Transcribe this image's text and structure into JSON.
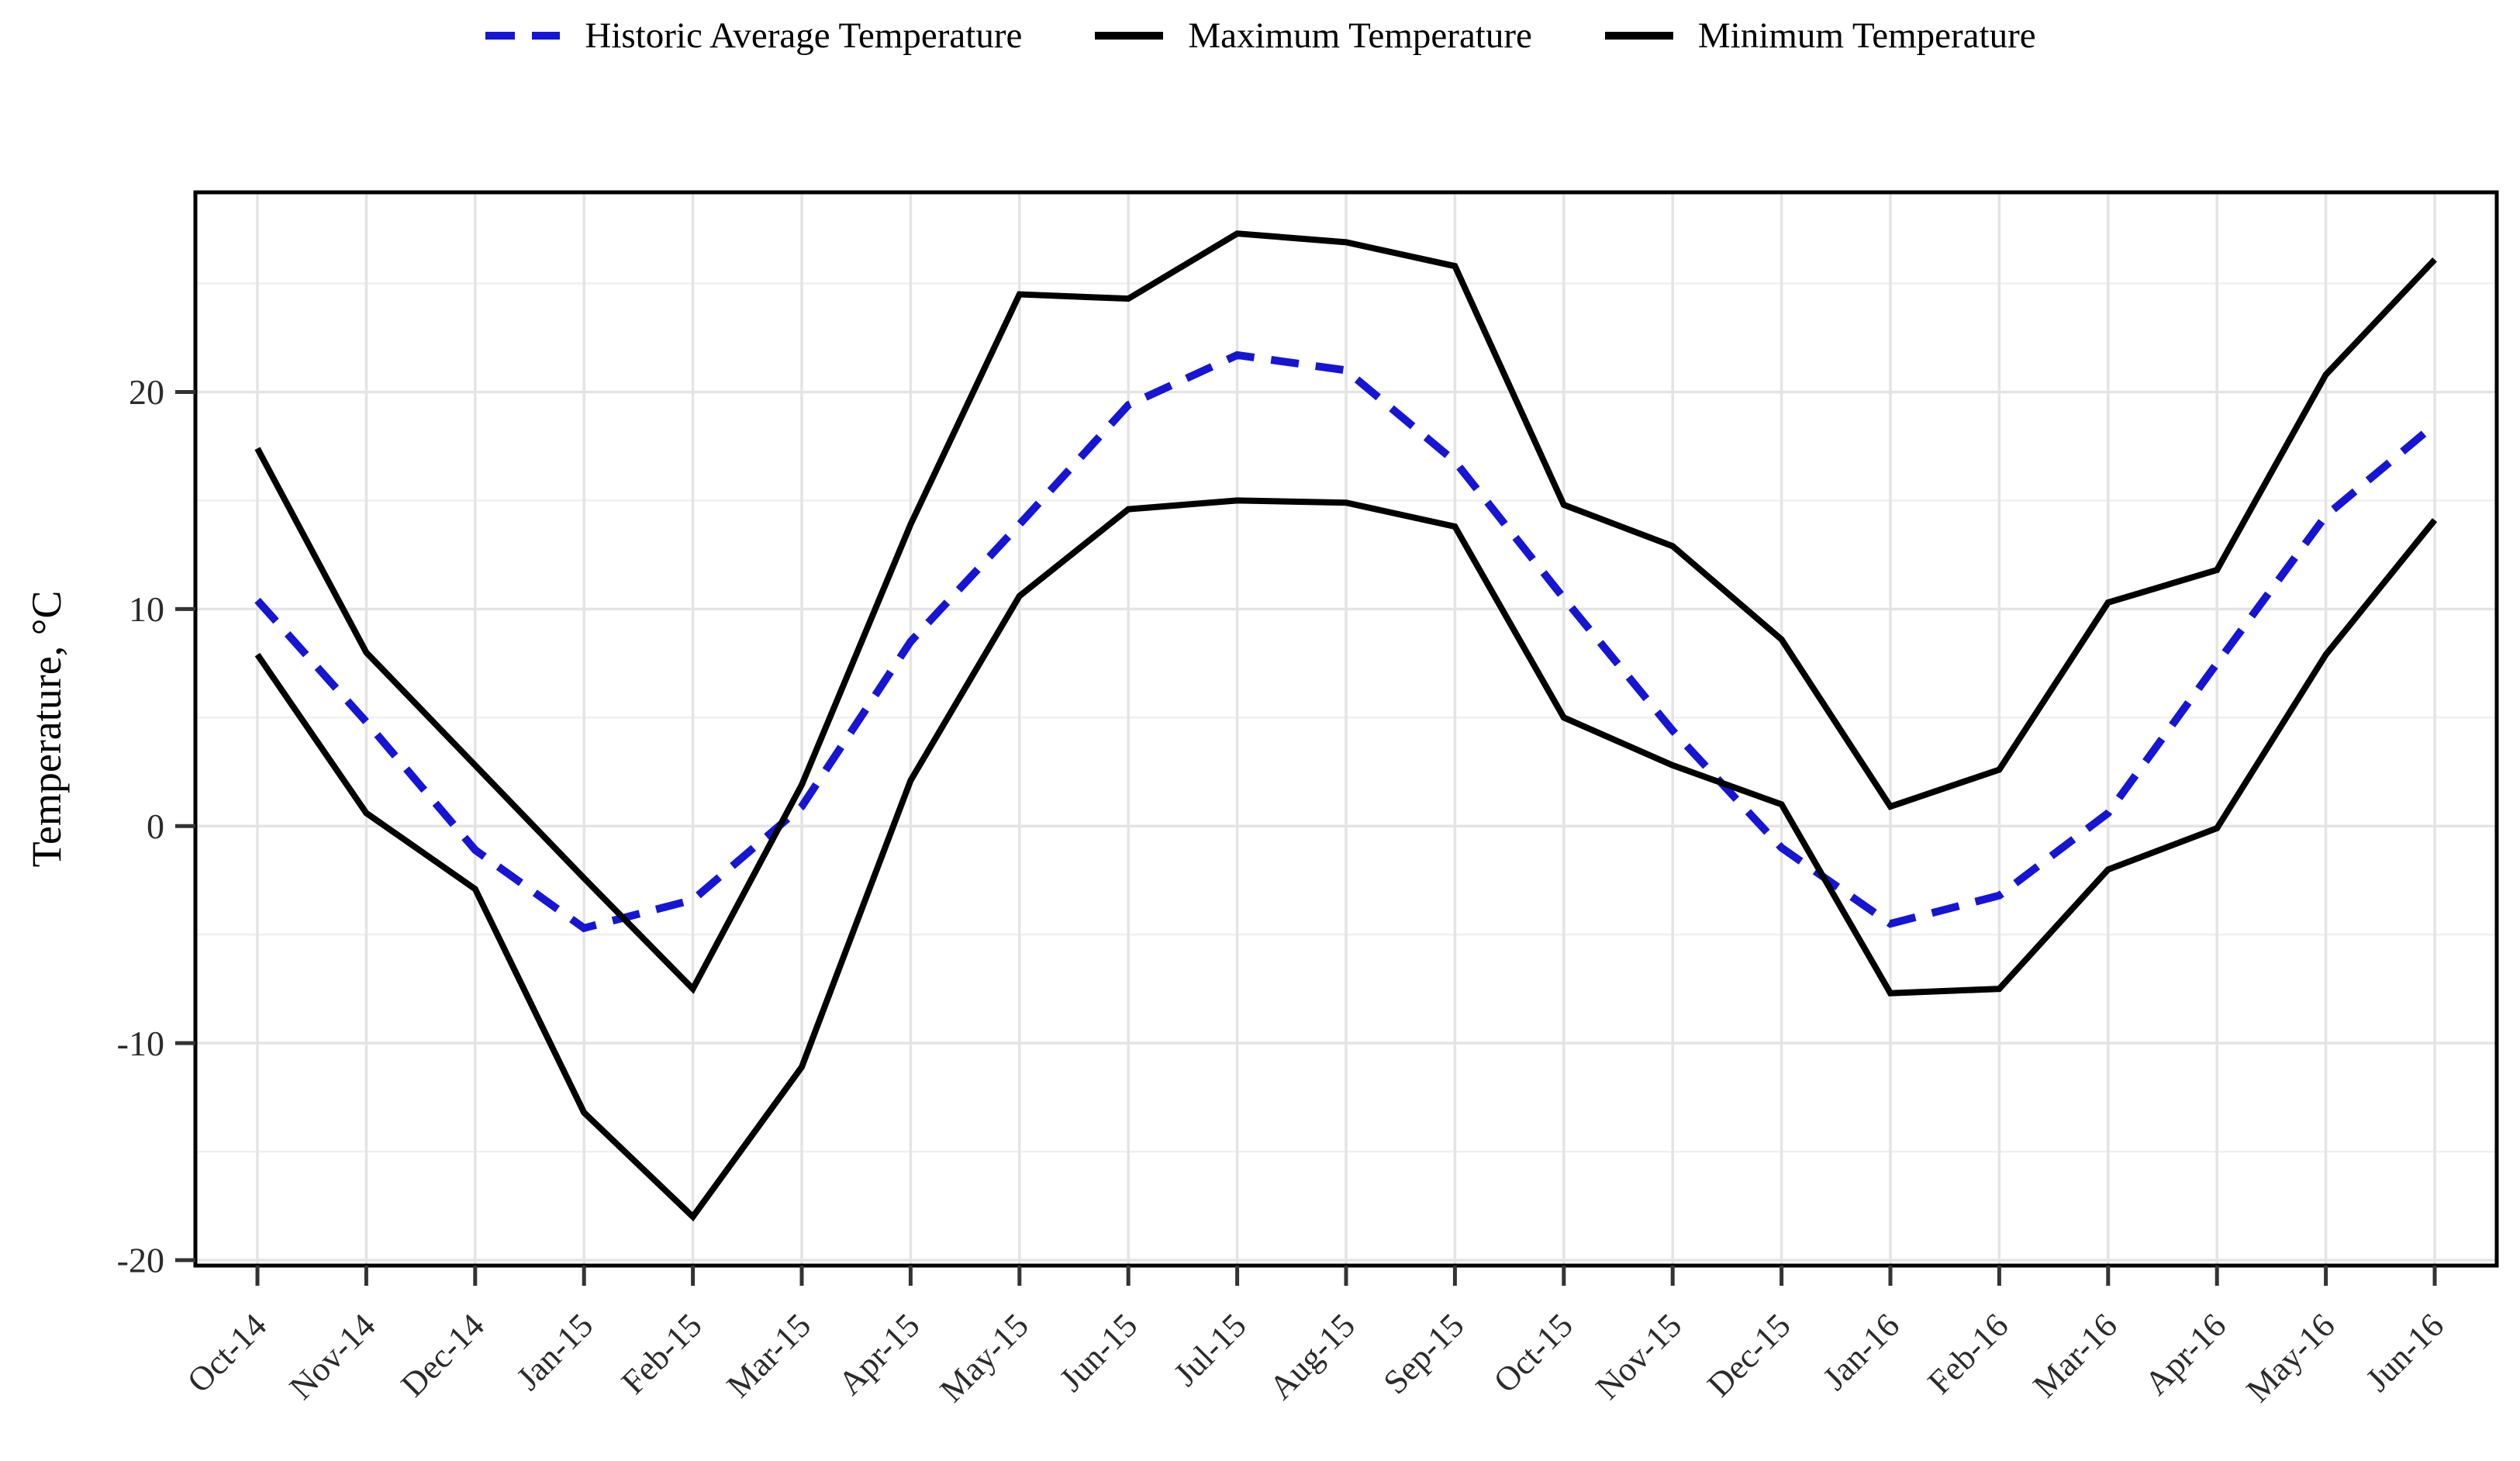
{
  "legend": {
    "items": [
      {
        "label": "Historic Average Temperature",
        "color": "#1515d6",
        "dasharray": "38 22"
      },
      {
        "label": "Maximum Temperature",
        "color": "#000000",
        "dasharray": "none"
      },
      {
        "label": "Minimum Temperature",
        "color": "#000000",
        "dasharray": "none"
      }
    ]
  },
  "chart_data": {
    "type": "line",
    "title": "",
    "xlabel": "",
    "ylabel": "Temperature, °C",
    "legend_position": "top",
    "grid": true,
    "ylim": [
      -20.25,
      29.2
    ],
    "y_ticks": [
      20,
      10,
      0,
      -10,
      -20
    ],
    "y_gridlines_minor": [
      25,
      15,
      5,
      -5,
      -15
    ],
    "categories": [
      "Oct-14",
      "Nov-14",
      "Dec-14",
      "Jan-15",
      "Feb-15",
      "Mar-15",
      "Apr-15",
      "May-15",
      "Jun-15",
      "Jul-15",
      "Aug-15",
      "Sep-15",
      "Oct-15",
      "Nov-15",
      "Dec-15",
      "Jan-16",
      "Feb-16",
      "Mar-16",
      "Apr-16",
      "May-16",
      "Jun-16"
    ],
    "series": [
      {
        "name": "Historic Average Temperature",
        "color": "#1515d6",
        "width": 10,
        "dasharray": "36 22",
        "values": [
          10.4,
          4.8,
          -1.1,
          -4.7,
          -3.4,
          0.9,
          8.5,
          13.9,
          19.4,
          21.7,
          21.0,
          16.8,
          10.5,
          4.4,
          -1.0,
          -4.5,
          -3.2,
          0.6,
          7.5,
          14.3,
          18.5
        ]
      },
      {
        "name": "Maximum Temperature",
        "color": "#000000",
        "width": 8,
        "dasharray": "none",
        "values": [
          17.4,
          8.0,
          2.8,
          -2.4,
          -7.5,
          1.9,
          13.9,
          24.5,
          24.3,
          27.3,
          26.9,
          25.8,
          14.8,
          12.9,
          8.6,
          0.9,
          2.6,
          10.3,
          11.8,
          20.8,
          26.1
        ]
      },
      {
        "name": "Minimum Temperature",
        "color": "#000000",
        "width": 8,
        "dasharray": "none",
        "values": [
          7.9,
          0.6,
          -2.9,
          -13.2,
          -18.0,
          -11.1,
          2.1,
          10.6,
          14.6,
          15.0,
          14.9,
          13.8,
          5.0,
          2.8,
          1.0,
          -7.7,
          -7.5,
          -2.0,
          -0.1,
          7.9,
          14.1
        ]
      }
    ]
  }
}
